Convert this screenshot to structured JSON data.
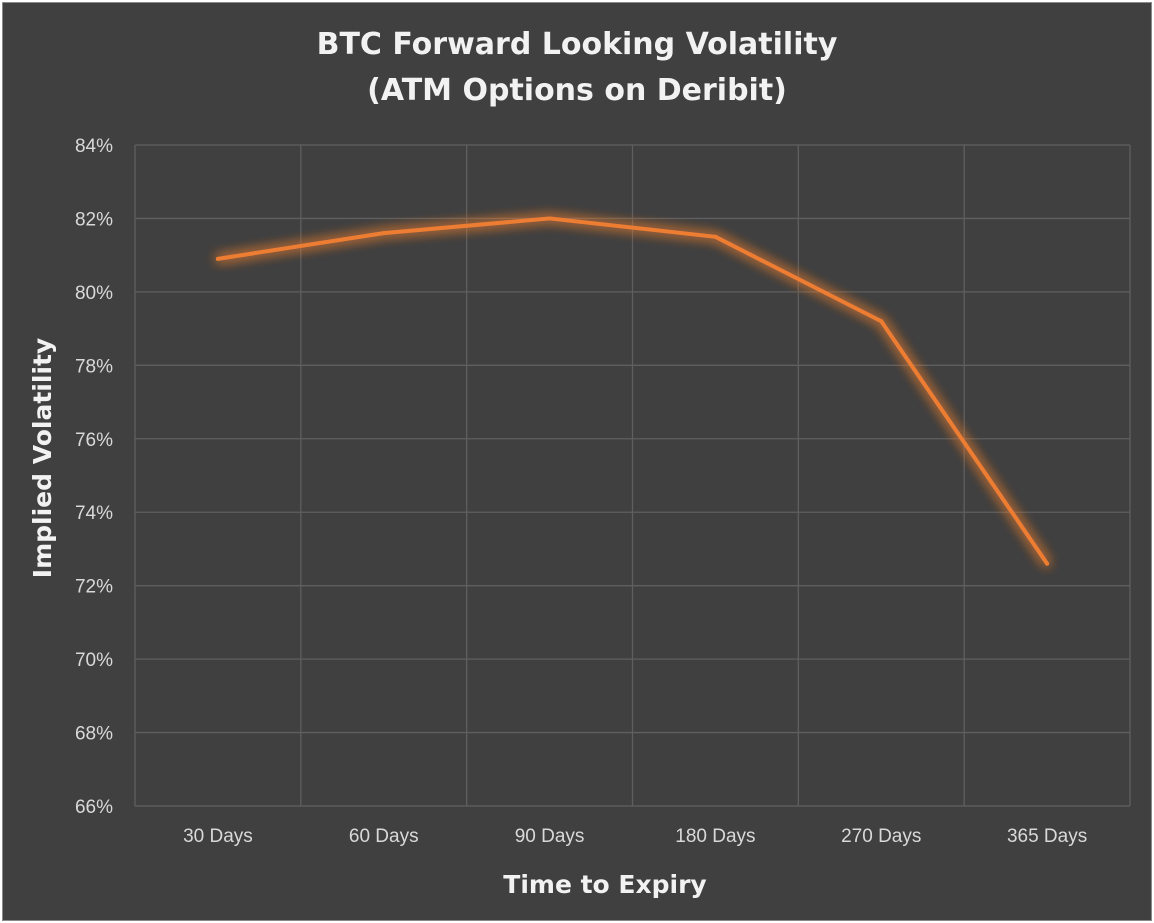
{
  "chart_data": {
    "type": "line",
    "title_line1": "BTC Forward Looking Volatility",
    "title_line2": "(ATM Options on Deribit)",
    "xlabel": "Time to Expiry",
    "ylabel": "Implied Volatility",
    "categories": [
      "30 Days",
      "60 Days",
      "90 Days",
      "180 Days",
      "270 Days",
      "365 Days"
    ],
    "series": [
      {
        "values": [
          80.9,
          81.6,
          82.0,
          81.5,
          79.2,
          72.6
        ],
        "color": "#ED7D31"
      }
    ],
    "ylim": [
      66,
      84
    ],
    "ytick_step": 2,
    "ytick_suffix": "%",
    "grid": true,
    "legend": "none",
    "background": "#404040",
    "gridline_color": "#5f5f5f",
    "text_color": "#d9d9d9"
  }
}
